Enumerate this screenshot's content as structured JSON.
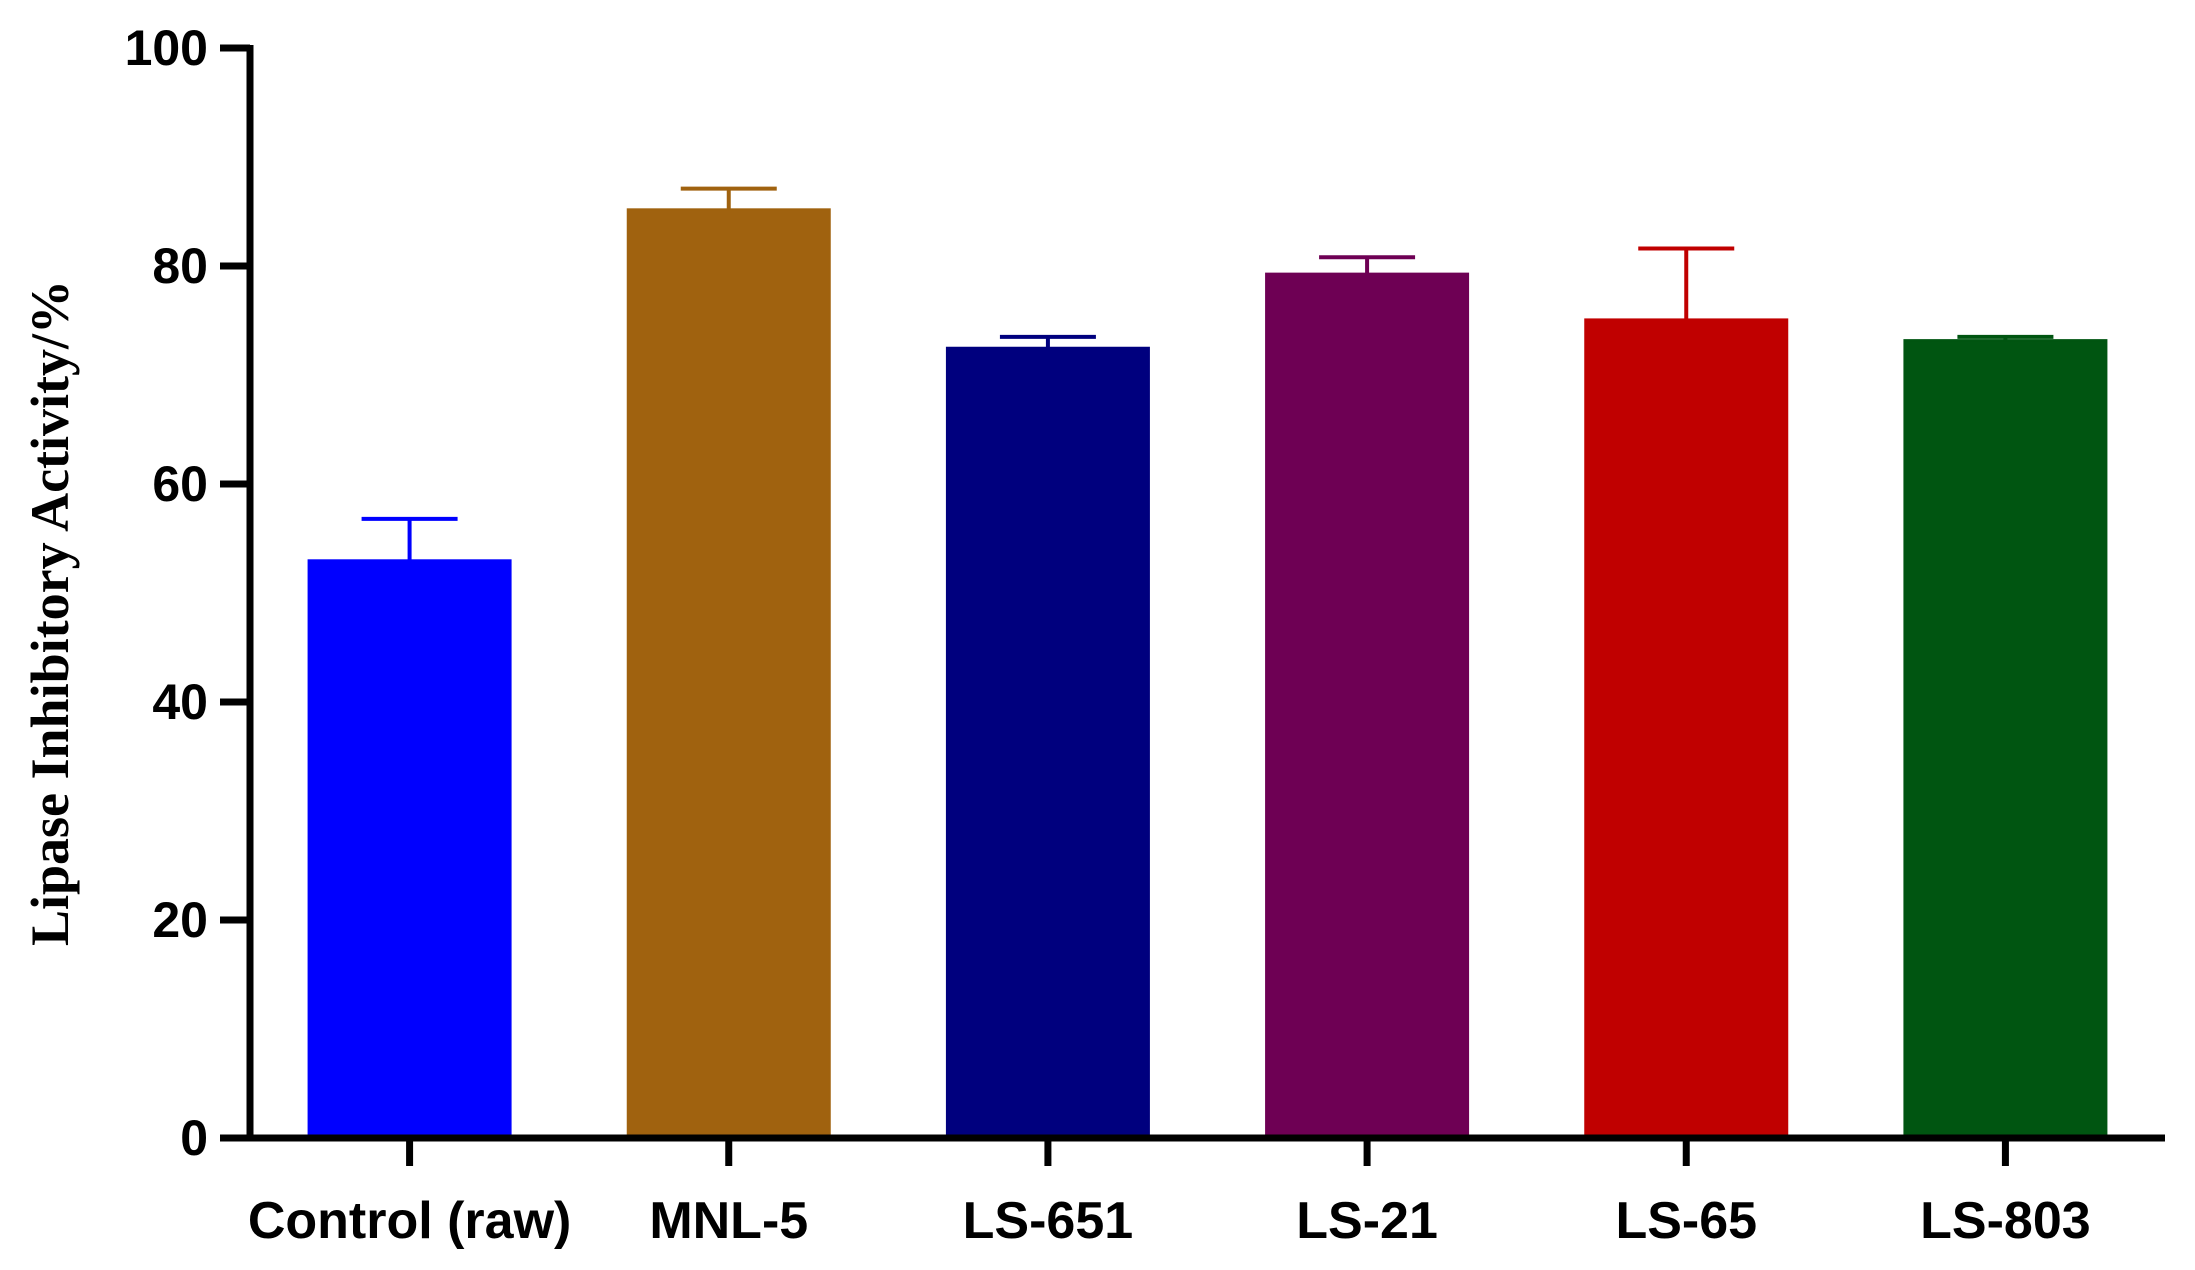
{
  "chart_data": {
    "type": "bar",
    "title": "",
    "xlabel": "",
    "ylabel": "Lipase Inhibitory Activity/%",
    "categories": [
      "Control (raw)",
      "MNL-5",
      "LS-651",
      "LS-21",
      "LS-65",
      "LS-803"
    ],
    "values": [
      53,
      85.2,
      72.5,
      79.3,
      75.1,
      73.2
    ],
    "errors": [
      3.8,
      1.9,
      1.0,
      1.5,
      6.5,
      0.3
    ],
    "colors": [
      "#0000ff",
      "#a0620f",
      "#00007e",
      "#6e0054",
      "#c00000",
      "#005511"
    ],
    "ylim": [
      0,
      100
    ],
    "yticks": [
      0,
      20,
      40,
      60,
      80,
      100
    ],
    "grid": false,
    "legend": "none"
  }
}
